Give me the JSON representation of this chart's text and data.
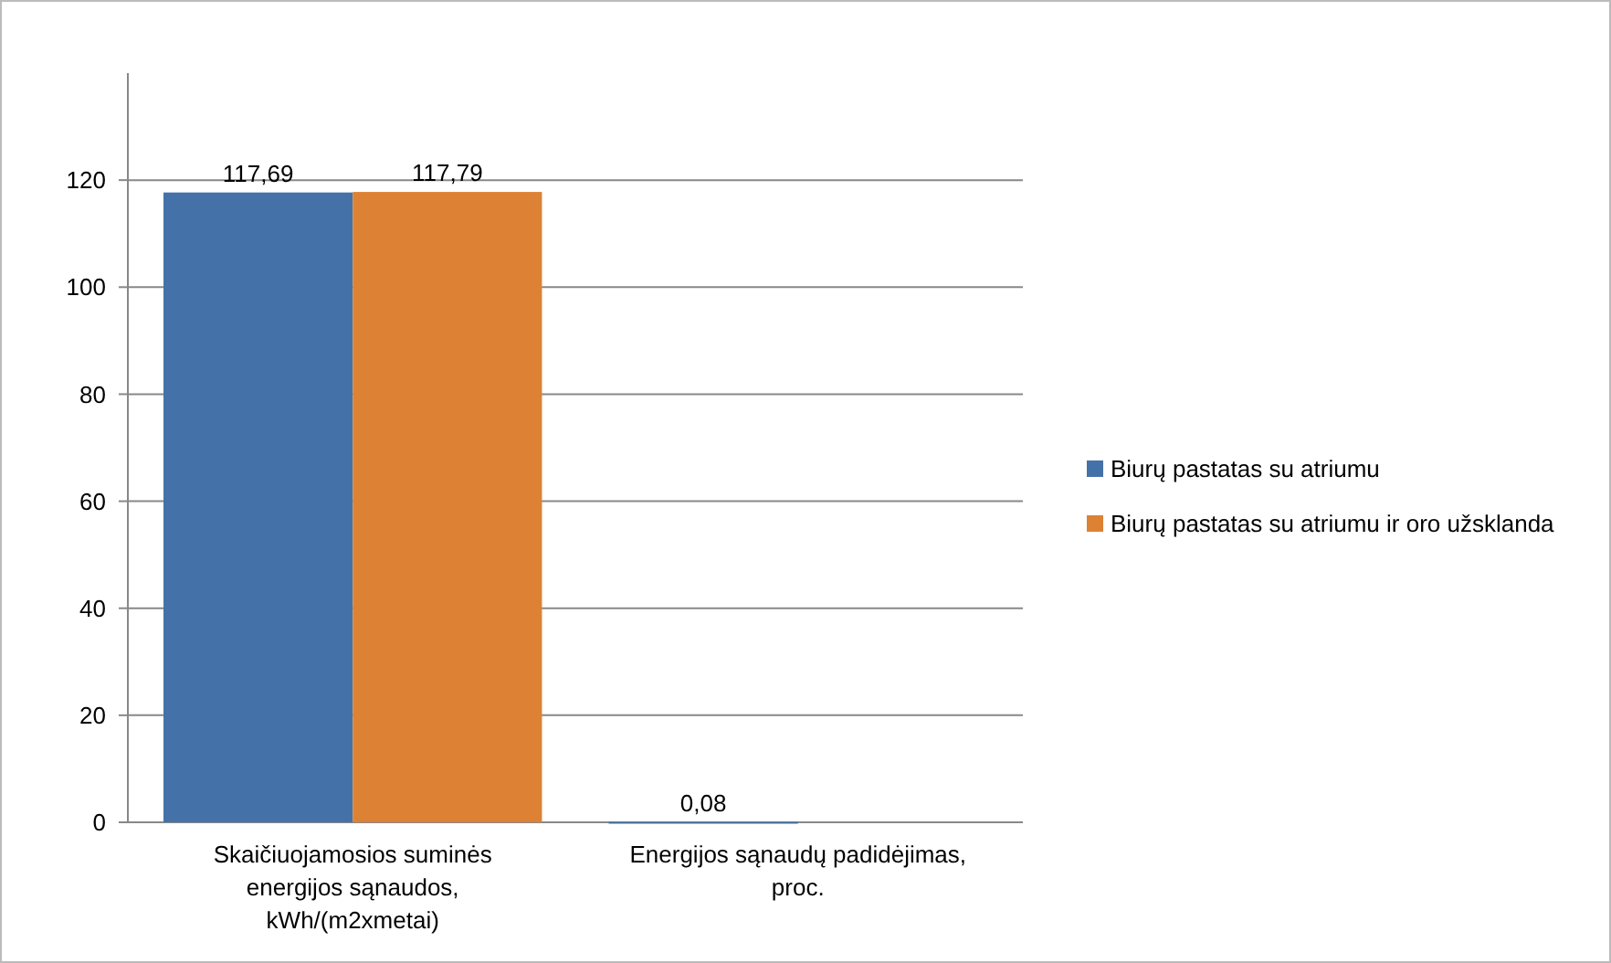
{
  "chart_data": {
    "type": "bar",
    "categories": [
      "Skaičiuojamosios suminės energijos sąnaudos, kWh/(m2xmetai)",
      "Energijos sąnaudų padidėjimas, proc."
    ],
    "series": [
      {
        "name": "Biurų pastatas su atriumu",
        "color": "#4472a8",
        "values": [
          117.69,
          0.08
        ],
        "value_labels": [
          "117,69",
          "0,08"
        ]
      },
      {
        "name": "Biurų pastatas su atriumu ir oro užsklanda",
        "color": "#dd8235",
        "values": [
          117.79,
          null
        ],
        "value_labels": [
          "117,79",
          null
        ]
      }
    ],
    "ylim": [
      0,
      140
    ],
    "yticks": [
      0,
      20,
      40,
      60,
      80,
      100,
      120
    ],
    "grid": "y",
    "legend": "right"
  }
}
